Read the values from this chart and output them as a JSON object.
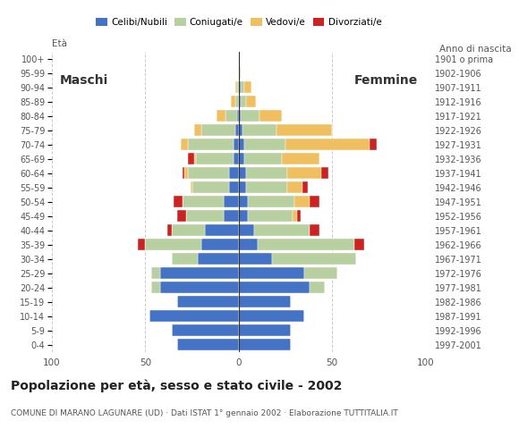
{
  "age_groups": [
    "0-4",
    "5-9",
    "10-14",
    "15-19",
    "20-24",
    "25-29",
    "30-34",
    "35-39",
    "40-44",
    "45-49",
    "50-54",
    "55-59",
    "60-64",
    "65-69",
    "70-74",
    "75-79",
    "80-84",
    "85-89",
    "90-94",
    "95-99",
    "100+"
  ],
  "birth_years": [
    "1997-2001",
    "1992-1996",
    "1987-1991",
    "1982-1986",
    "1977-1981",
    "1972-1976",
    "1967-1971",
    "1962-1966",
    "1957-1961",
    "1952-1956",
    "1947-1951",
    "1942-1946",
    "1937-1941",
    "1932-1936",
    "1927-1931",
    "1922-1926",
    "1917-1921",
    "1912-1916",
    "1907-1911",
    "1902-1906",
    "1901 o prima"
  ],
  "males": {
    "celibe": [
      33,
      36,
      48,
      33,
      42,
      42,
      22,
      20,
      18,
      8,
      8,
      5,
      5,
      3,
      3,
      2,
      1,
      0,
      0,
      0,
      0
    ],
    "coniugato": [
      0,
      0,
      0,
      0,
      5,
      5,
      14,
      30,
      18,
      20,
      22,
      20,
      22,
      20,
      24,
      18,
      6,
      2,
      1,
      0,
      0
    ],
    "vedovo": [
      0,
      0,
      0,
      0,
      0,
      0,
      0,
      0,
      0,
      0,
      0,
      1,
      2,
      1,
      4,
      4,
      5,
      2,
      1,
      0,
      0
    ],
    "divorziato": [
      0,
      0,
      0,
      0,
      0,
      0,
      0,
      4,
      2,
      5,
      5,
      0,
      1,
      3,
      0,
      0,
      0,
      0,
      0,
      0,
      0
    ]
  },
  "females": {
    "nubile": [
      28,
      28,
      35,
      28,
      38,
      35,
      18,
      10,
      8,
      5,
      5,
      4,
      4,
      3,
      3,
      2,
      1,
      1,
      1,
      0,
      0
    ],
    "coniugata": [
      0,
      0,
      0,
      0,
      8,
      18,
      45,
      52,
      30,
      24,
      25,
      22,
      22,
      20,
      22,
      18,
      10,
      3,
      2,
      1,
      0
    ],
    "vedova": [
      0,
      0,
      0,
      0,
      0,
      0,
      0,
      0,
      0,
      2,
      8,
      8,
      18,
      20,
      45,
      30,
      12,
      5,
      4,
      0,
      0
    ],
    "divorziata": [
      0,
      0,
      0,
      0,
      0,
      0,
      0,
      5,
      5,
      2,
      5,
      3,
      4,
      0,
      4,
      0,
      0,
      0,
      0,
      0,
      0
    ]
  },
  "colors": {
    "celibe": "#4472c4",
    "coniugato": "#b8cfa0",
    "vedovo": "#f0c060",
    "divorziato": "#cc2222"
  },
  "legend_labels": [
    "Celibi/Nubili",
    "Coniugati/e",
    "Vedovi/e",
    "Divorziati/e"
  ],
  "title": "Popolazione per età, sesso e stato civile - 2002",
  "subtitle": "COMUNE DI MARANO LAGUNARE (UD) · Dati ISTAT 1° gennaio 2002 · Elaborazione TUTTITALIA.IT",
  "label_maschi": "Maschi",
  "label_femmine": "Femmine",
  "label_eta": "Età",
  "label_anno": "Anno di nascita",
  "xlim": 100,
  "background_color": "#ffffff",
  "grid_color": "#cccccc",
  "bar_height": 0.82
}
